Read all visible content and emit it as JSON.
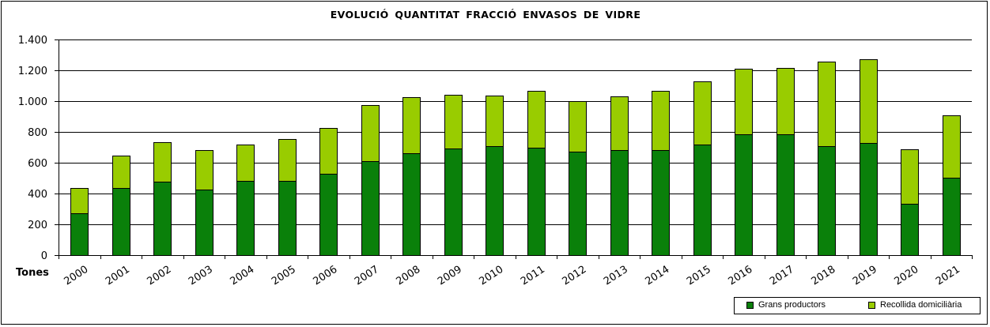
{
  "chart_data": {
    "type": "bar",
    "stacked": true,
    "title": "EVOLUCIÓ  QUANTITAT  FRACCIÓ  ENVASOS  DE  VIDRE",
    "ylabel": "Tones",
    "xlabel": "",
    "ylim": [
      0,
      1400
    ],
    "yticks": [
      0,
      200,
      400,
      600,
      800,
      1000,
      1200,
      1400
    ],
    "ytick_labels": [
      "0",
      "200",
      "400",
      "600",
      "800",
      "1.000",
      "1.200",
      "1.400"
    ],
    "grid": true,
    "legend_position": "bottom-right",
    "categories": [
      "2000",
      "2001",
      "2002",
      "2003",
      "2004",
      "2005",
      "2006",
      "2007",
      "2008",
      "2009",
      "2010",
      "2011",
      "2012",
      "2013",
      "2014",
      "2015",
      "2016",
      "2017",
      "2018",
      "2019",
      "2020",
      "2021"
    ],
    "series": [
      {
        "name": "Grans productors",
        "color": "#0a800a",
        "values": [
          270,
          435,
          475,
          425,
          480,
          480,
          530,
          610,
          660,
          690,
          710,
          700,
          670,
          680,
          680,
          720,
          785,
          785,
          710,
          730,
          335,
          505
        ]
      },
      {
        "name": "Recollida domiciliària",
        "color": "#99cc00",
        "values": [
          165,
          210,
          260,
          255,
          240,
          275,
          295,
          365,
          365,
          350,
          325,
          365,
          330,
          350,
          385,
          410,
          425,
          430,
          545,
          540,
          350,
          405
        ]
      }
    ]
  }
}
